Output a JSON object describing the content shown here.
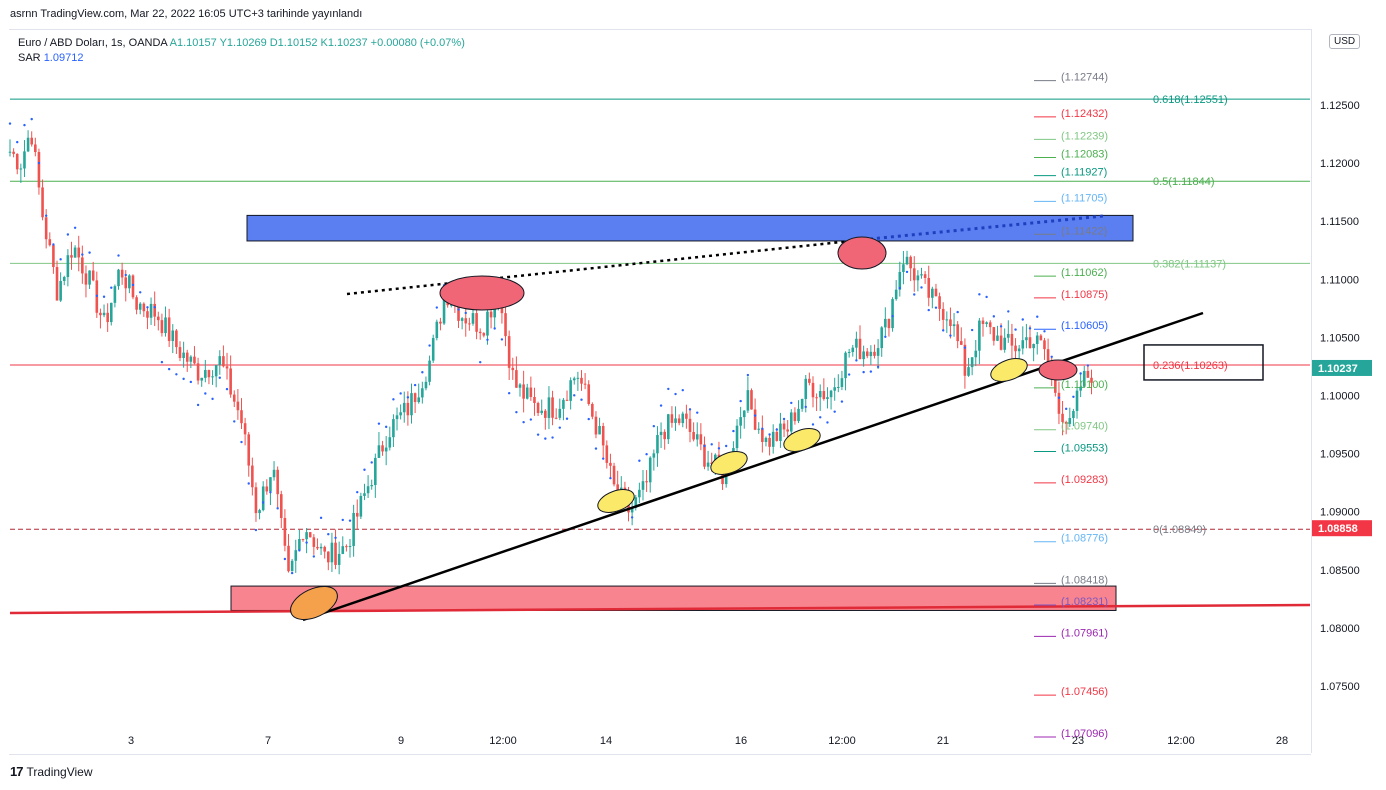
{
  "header": {
    "published": "asrnn TradingView.com, Mar 22, 2022 16:05 UTC+3 tarihinde yayınlandı"
  },
  "legend": {
    "symbol": "Euro / ABD Doları, 1s, OANDA",
    "ohlc": "A1.10157  Y1.10269  D1.10152  K1.10237",
    "change": "+0.00080 (+0.07%)",
    "sar_label": "SAR",
    "sar_value": "1.09712"
  },
  "currency": "USD",
  "brand": {
    "name": "TradingView",
    "mark": "17"
  },
  "colors": {
    "up": "#26a69a",
    "down": "#ef5350",
    "sar": "#2962ff",
    "fib_618": "#089981",
    "fib_500": "#4caf50",
    "fib_382": "#81c784",
    "fib_236": "#f23645",
    "fib_0": "#787b86"
  },
  "chart_data": {
    "type": "candlestick",
    "symbol": "EUR/USD",
    "timeframe": "1h",
    "ylim": [
      1.069,
      1.1305
    ],
    "x_tick_labels": [
      "3",
      "7",
      "9",
      "12:00",
      "14",
      "16",
      "12:00",
      "21",
      "23",
      "12:00",
      "28"
    ],
    "y_tick_labels": [
      "1.12500",
      "1.12000",
      "1.11500",
      "1.11000",
      "1.10500",
      "1.10000",
      "1.09500",
      "1.09000",
      "1.08500",
      "1.08000",
      "1.07500"
    ],
    "y_ticks": [
      1.125,
      1.12,
      1.115,
      1.11,
      1.105,
      1.1,
      1.095,
      1.09,
      1.085,
      1.08,
      1.075
    ],
    "last_price": {
      "value": 1.10237,
      "label": "1.10237"
    },
    "reference_price": {
      "value": 1.08858,
      "label": "1.08858"
    },
    "close_path": [
      [
        0,
        1.121
      ],
      [
        0.01,
        1.12
      ],
      [
        0.02,
        1.123
      ],
      [
        0.03,
        1.116
      ],
      [
        0.045,
        1.109
      ],
      [
        0.06,
        1.113
      ],
      [
        0.075,
        1.11
      ],
      [
        0.09,
        1.106
      ],
      [
        0.105,
        1.111
      ],
      [
        0.12,
        1.108
      ],
      [
        0.14,
        1.107
      ],
      [
        0.16,
        1.104
      ],
      [
        0.18,
        1.102
      ],
      [
        0.2,
        1.103
      ],
      [
        0.22,
        1.098
      ],
      [
        0.235,
        1.09
      ],
      [
        0.25,
        1.094
      ],
      [
        0.265,
        1.084
      ],
      [
        0.28,
        1.089
      ],
      [
        0.3,
        1.086
      ],
      [
        0.32,
        1.087
      ],
      [
        0.34,
        1.092
      ],
      [
        0.36,
        1.097
      ],
      [
        0.38,
        1.099
      ],
      [
        0.4,
        1.103
      ],
      [
        0.415,
        1.109
      ],
      [
        0.43,
        1.107
      ],
      [
        0.45,
        1.106
      ],
      [
        0.465,
        1.109
      ],
      [
        0.48,
        1.101
      ],
      [
        0.5,
        1.099
      ],
      [
        0.52,
        1.099
      ],
      [
        0.54,
        1.102
      ],
      [
        0.56,
        1.097
      ],
      [
        0.575,
        1.092
      ],
      [
        0.59,
        1.09
      ],
      [
        0.605,
        1.092
      ],
      [
        0.62,
        1.097
      ],
      [
        0.64,
        1.098
      ],
      [
        0.66,
        1.095
      ],
      [
        0.68,
        1.093
      ],
      [
        0.7,
        1.1
      ],
      [
        0.72,
        1.096
      ],
      [
        0.74,
        1.097
      ],
      [
        0.76,
        1.101
      ],
      [
        0.78,
        1.1
      ],
      [
        0.8,
        1.104
      ],
      [
        0.82,
        1.104
      ],
      [
        0.835,
        1.106
      ],
      [
        0.85,
        1.112
      ],
      [
        0.865,
        1.11
      ],
      [
        0.88,
        1.108
      ],
      [
        0.895,
        1.107
      ],
      [
        0.91,
        1.102
      ],
      [
        0.925,
        1.106
      ],
      [
        0.94,
        1.105
      ],
      [
        0.955,
        1.104
      ],
      [
        0.97,
        1.105
      ],
      [
        0.985,
        1.104
      ],
      [
        1.0,
        1.099
      ],
      [
        1.01,
        1.097
      ],
      [
        1.02,
        1.101
      ],
      [
        1.03,
        1.102
      ]
    ],
    "sar_value": 1.09712,
    "fibonacci": [
      {
        "ratio": "0.618",
        "price": 1.12551,
        "label": "0.618(1.12551)"
      },
      {
        "ratio": "0.5",
        "price": 1.11844,
        "label": "0.5(1.11844)"
      },
      {
        "ratio": "0.382",
        "price": 1.11137,
        "label": "0.382(1.11137)"
      },
      {
        "ratio": "0.236",
        "price": 1.10263,
        "label": "0.236(1.10263)"
      },
      {
        "ratio": "0",
        "price": 1.08849,
        "label": "0(1.08849)"
      }
    ],
    "price_levels": [
      {
        "price": 1.12744,
        "label": "(1.12744)",
        "color": "#787b86"
      },
      {
        "price": 1.12432,
        "label": "(1.12432)",
        "color": "#f23645"
      },
      {
        "price": 1.12239,
        "label": "(1.12239)",
        "color": "#81c784"
      },
      {
        "price": 1.12083,
        "label": "(1.12083)",
        "color": "#4caf50"
      },
      {
        "price": 1.11927,
        "label": "(1.11927)",
        "color": "#089981"
      },
      {
        "price": 1.11705,
        "label": "(1.11705)",
        "color": "#64b5f6"
      },
      {
        "price": 1.11422,
        "label": "(1.11422)",
        "color": "#787b86"
      },
      {
        "price": 1.11062,
        "label": "(1.11062)",
        "color": "#4caf50"
      },
      {
        "price": 1.10875,
        "label": "(1.10875)",
        "color": "#f23645"
      },
      {
        "price": 1.10605,
        "label": "(1.10605)",
        "color": "#2962ff"
      },
      {
        "price": 1.101,
        "label": "(1.10100)",
        "color": "#4caf50"
      },
      {
        "price": 1.0974,
        "label": "(1.09740)",
        "color": "#81c784"
      },
      {
        "price": 1.09553,
        "label": "(1.09553)",
        "color": "#089981"
      },
      {
        "price": 1.09283,
        "label": "(1.09283)",
        "color": "#f23645"
      },
      {
        "price": 1.08776,
        "label": "(1.08776)",
        "color": "#64b5f6"
      },
      {
        "price": 1.08418,
        "label": "(1.08418)",
        "color": "#787b86"
      },
      {
        "price": 1.08231,
        "label": "(1.08231)",
        "color": "#7e57c2"
      },
      {
        "price": 1.07961,
        "label": "(1.07961)",
        "color": "#9c27b0"
      },
      {
        "price": 1.07456,
        "label": "(1.07456)",
        "color": "#f23645"
      },
      {
        "price": 1.07096,
        "label": "(1.07096)",
        "color": "#9c27b0"
      }
    ],
    "zones": [
      {
        "name": "resistance",
        "price_top": 1.1155,
        "price_bottom": 1.1133,
        "color": "#5b7ff0"
      },
      {
        "name": "support",
        "price_top": 1.0836,
        "price_bottom": 1.0815,
        "color": "#f7848e"
      }
    ]
  }
}
